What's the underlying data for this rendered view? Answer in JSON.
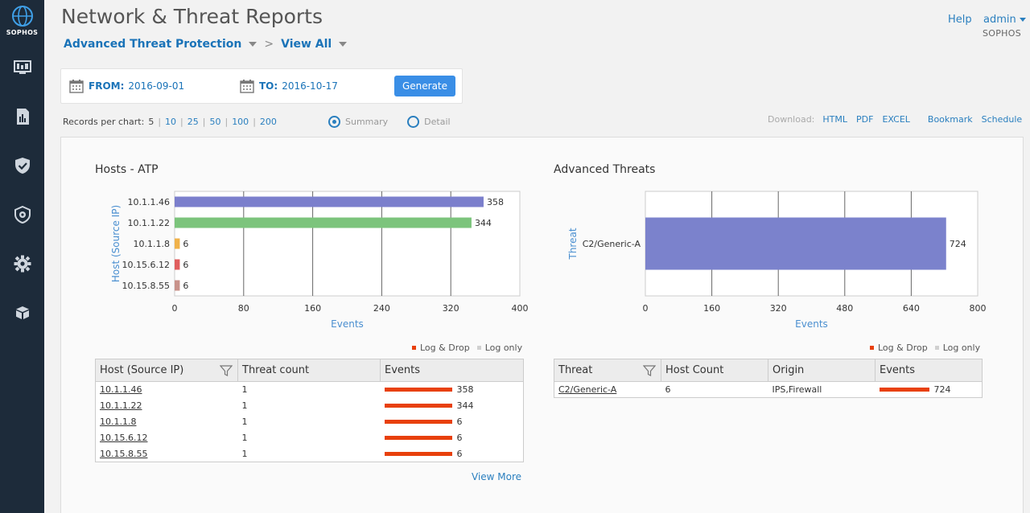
{
  "sidebar": {
    "logo_text": "SOPHOS",
    "items": [
      {
        "icon": "monitor-icon"
      },
      {
        "icon": "report-icon"
      },
      {
        "icon": "shield-check-icon"
      },
      {
        "icon": "shield-gear-icon"
      },
      {
        "icon": "gear-icon"
      },
      {
        "icon": "box-icon"
      }
    ]
  },
  "header": {
    "title": "Network & Threat Reports",
    "breadcrumb": [
      "Advanced Threat Protection",
      "View All"
    ],
    "help": "Help",
    "user": "admin",
    "org": "SOPHOS"
  },
  "dates": {
    "from_label": "FROM:",
    "from_value": "2016-09-01",
    "to_label": "TO:",
    "to_value": "2016-10-17",
    "generate": "Generate"
  },
  "records": {
    "label": "Records per chart:",
    "options": [
      "5",
      "10",
      "25",
      "50",
      "100",
      "200"
    ],
    "selected": "5"
  },
  "view_mode": {
    "summary": "Summary",
    "detail": "Detail",
    "selected": "Summary"
  },
  "downloads": {
    "label": "Download:",
    "formats": [
      "HTML",
      "PDF",
      "EXCEL"
    ],
    "bookmark": "Bookmark",
    "schedule": "Schedule"
  },
  "legend": {
    "log_drop": "Log & Drop",
    "log_only": "Log only",
    "log_drop_color": "#e8400c",
    "log_only_color": "#d0d0d0"
  },
  "chart_data": [
    {
      "type": "bar",
      "orientation": "horizontal",
      "title": "Hosts - ATP",
      "xlabel": "Events",
      "ylabel": "Host (Source IP)",
      "categories": [
        "10.1.1.46",
        "10.1.1.22",
        "10.1.1.8",
        "10.15.6.12",
        "10.15.8.55"
      ],
      "values": [
        358,
        344,
        6,
        6,
        6
      ],
      "colors": [
        "#7b7fcc",
        "#7cc47c",
        "#f0b24a",
        "#e05d5d",
        "#c8928a"
      ],
      "xlim": [
        0,
        400
      ],
      "xticks": [
        "0",
        "80",
        "160",
        "240",
        "320",
        "400"
      ],
      "grid": true
    },
    {
      "type": "bar",
      "orientation": "horizontal",
      "title": "Advanced Threats",
      "xlabel": "Events",
      "ylabel": "Threat",
      "categories": [
        "C2/Generic-A"
      ],
      "values": [
        724
      ],
      "colors": [
        "#7b82cc"
      ],
      "xlim": [
        0,
        800
      ],
      "xticks": [
        "0",
        "160",
        "320",
        "480",
        "640",
        "800"
      ],
      "grid": true
    }
  ],
  "hosts_table": {
    "headers": [
      "Host (Source IP)",
      "Threat count",
      "Events"
    ],
    "rows": [
      {
        "host": "10.1.1.46",
        "threats": "1",
        "events": "358",
        "events_num": 358
      },
      {
        "host": "10.1.1.22",
        "threats": "1",
        "events": "344",
        "events_num": 344
      },
      {
        "host": "10.1.1.8",
        "threats": "1",
        "events": "6",
        "events_num": 6
      },
      {
        "host": "10.15.6.12",
        "threats": "1",
        "events": "6",
        "events_num": 6
      },
      {
        "host": "10.15.8.55",
        "threats": "1",
        "events": "6",
        "events_num": 6
      }
    ],
    "view_more": "View More"
  },
  "threats_table": {
    "headers": [
      "Threat",
      "Host Count",
      "Origin",
      "Events"
    ],
    "rows": [
      {
        "threat": "C2/Generic-A",
        "hosts": "6",
        "origin": "IPS,Firewall",
        "events": "724",
        "events_num": 724
      }
    ]
  }
}
